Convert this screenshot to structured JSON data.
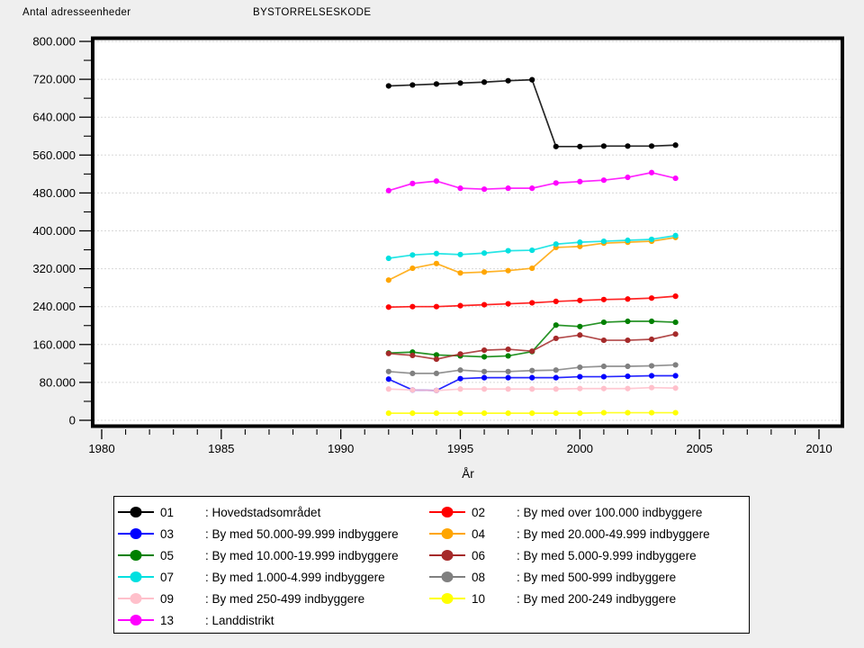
{
  "header": {
    "y_axis_title": "Antal adresseenheder",
    "group_title": "BYSTORRELSESKODE"
  },
  "x_axis": {
    "label": "År"
  },
  "chart_data": {
    "type": "line",
    "title": "BYSTORRELSESKODE",
    "xlabel": "År",
    "ylabel": "Antal adresseenheder",
    "x": [
      1992,
      1993,
      1994,
      1995,
      1996,
      1997,
      1998,
      1999,
      2000,
      2001,
      2002,
      2003,
      2004
    ],
    "xlim": [
      1979.57,
      2010.95
    ],
    "ylim": [
      0,
      800000
    ],
    "x_major_ticks": [
      1980,
      1985,
      1990,
      1995,
      2000,
      2005,
      2010
    ],
    "x_tick_labels": [
      "1980",
      "1985",
      "1990",
      "1995",
      "2000",
      "2005",
      "2010"
    ],
    "x_minor_step": 1,
    "y_major_step": 80000,
    "y_minor_step": 40000,
    "y_tick_labels": [
      "0",
      "80.000",
      "160.000",
      "240.000",
      "320.000",
      "400.000",
      "480.000",
      "560.000",
      "640.000",
      "720.000",
      "800.000"
    ],
    "grid": "horizontal-dotted",
    "legend_position": "bottom",
    "series": [
      {
        "code": "01",
        "label": ": Hovedstadsområdet",
        "color": "#000000",
        "values": [
          706000,
          708000,
          710000,
          712000,
          714000,
          717000,
          719000,
          578000,
          578000,
          579000,
          579000,
          579000,
          581000
        ]
      },
      {
        "code": "02",
        "label": ": By med over 100.000 indbyggere",
        "color": "#ff0000",
        "values": [
          239000,
          240000,
          240000,
          242000,
          244000,
          246000,
          248000,
          251000,
          253000,
          255000,
          256000,
          258000,
          262000
        ]
      },
      {
        "code": "03",
        "label": ": By med 50.000-99.999 indbyggere",
        "color": "#0000ff",
        "values": [
          87000,
          64000,
          63000,
          88000,
          90000,
          90000,
          90000,
          90000,
          92000,
          92000,
          93000,
          94000,
          94000
        ]
      },
      {
        "code": "04",
        "label": ": By med 20.000-49.999 indbyggere",
        "color": "#ffa500",
        "values": [
          296000,
          321000,
          331000,
          311000,
          313000,
          316000,
          321000,
          365000,
          367000,
          374000,
          376000,
          378000,
          386000
        ]
      },
      {
        "code": "05",
        "label": ": By med 10.000-19.999 indbyggere",
        "color": "#008000",
        "values": [
          142000,
          144000,
          138000,
          136000,
          134000,
          136000,
          145000,
          201000,
          198000,
          207000,
          209000,
          209000,
          207000
        ]
      },
      {
        "code": "06",
        "label": ": By med 5.000-9.999 indbyggere",
        "color": "#a52a2a",
        "values": [
          141000,
          137000,
          129000,
          140000,
          148000,
          150000,
          146000,
          173000,
          180000,
          169000,
          169000,
          171000,
          182000
        ]
      },
      {
        "code": "07",
        "label": ": By med 1.000-4.999 indbyggere",
        "color": "#00e0e0",
        "values": [
          342000,
          349000,
          352000,
          350000,
          353000,
          358000,
          359000,
          372000,
          376000,
          378000,
          380000,
          382000,
          390000
        ]
      },
      {
        "code": "08",
        "label": ": By med 500-999 indbyggere",
        "color": "#808080",
        "values": [
          103000,
          99000,
          99000,
          106000,
          103000,
          103000,
          105000,
          106000,
          112000,
          114000,
          114000,
          115000,
          117000
        ]
      },
      {
        "code": "09",
        "label": ": By med 250-499 indbyggere",
        "color": "#ffc0cb",
        "values": [
          66000,
          64000,
          63000,
          66000,
          66000,
          66000,
          66000,
          66000,
          67000,
          67000,
          67000,
          69000,
          68000
        ]
      },
      {
        "code": "10",
        "label": ": By med 200-249 indbyggere",
        "color": "#ffff00",
        "values": [
          15000,
          15000,
          15000,
          15000,
          15000,
          15000,
          15000,
          15000,
          15000,
          16000,
          16000,
          16000,
          16000
        ]
      },
      {
        "code": "13",
        "label": ": Landdistrikt",
        "color": "#ff00ff",
        "values": [
          485000,
          500000,
          505000,
          490000,
          488000,
          490000,
          490000,
          501000,
          504000,
          507000,
          513000,
          523000,
          511000
        ]
      }
    ]
  },
  "legend": {
    "left_codes": [
      "01",
      "03",
      "05",
      "07",
      "09",
      "13"
    ],
    "right_codes": [
      "02",
      "04",
      "06",
      "08",
      "10"
    ]
  }
}
